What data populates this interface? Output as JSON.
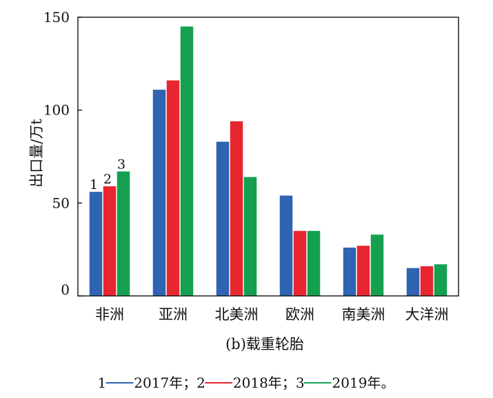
{
  "chart_data": {
    "type": "bar",
    "title": "",
    "caption": "(b)载重轮胎",
    "xlabel": "",
    "ylabel": "出口量/万t",
    "ylim": [
      0,
      150
    ],
    "yticks": [
      0,
      50,
      100,
      150
    ],
    "grid": false,
    "categories": [
      "非洲",
      "亚洲",
      "北美洲",
      "欧洲",
      "南美洲",
      "大洋洲"
    ],
    "series": [
      {
        "name": "1",
        "color": "#2e64b2",
        "values": [
          56,
          111,
          83,
          54,
          26,
          15
        ]
      },
      {
        "name": "2",
        "color": "#e8262f",
        "values": [
          59,
          116,
          94,
          35,
          27,
          16
        ]
      },
      {
        "name": "3",
        "color": "#14a050",
        "values": [
          67,
          145,
          64,
          35,
          33,
          17
        ]
      }
    ],
    "series_labels": [
      "1",
      "2",
      "3"
    ],
    "legend_note": {
      "parts": [
        {
          "num": "1",
          "color": "#2e64b2",
          "text": "2017年"
        },
        {
          "num": "2",
          "color": "#e8262f",
          "text": "2018年"
        },
        {
          "num": "3",
          "color": "#14a050",
          "text": "2019年"
        }
      ],
      "separator": "；",
      "end": "。"
    }
  }
}
